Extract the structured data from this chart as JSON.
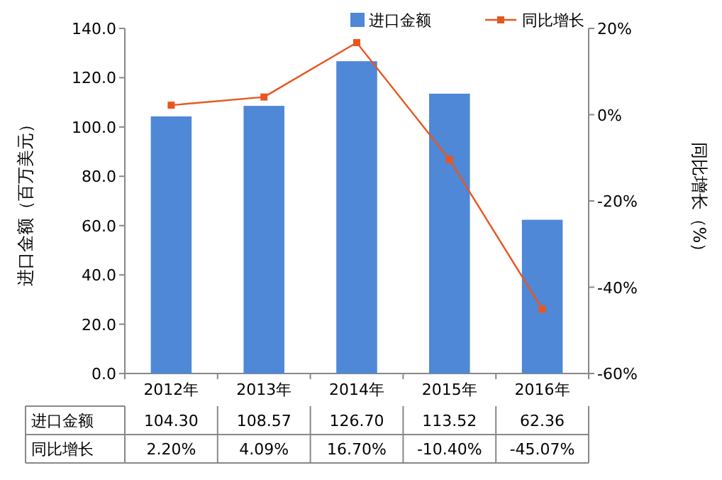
{
  "chart_data": {
    "type": "bar",
    "categories": [
      "2012年",
      "2013年",
      "2014年",
      "2015年",
      "2016年"
    ],
    "ylabel": "进口金额（百万美元）",
    "y2label": "同比增长（%）",
    "ylim": [
      0,
      140
    ],
    "yticks": [
      {
        "value": 0,
        "label": "0.0"
      },
      {
        "value": 20,
        "label": "20.0"
      },
      {
        "value": 40,
        "label": "40.0"
      },
      {
        "value": 60,
        "label": "60.0"
      },
      {
        "value": 80,
        "label": "80.0"
      },
      {
        "value": 100,
        "label": "100.0"
      },
      {
        "value": 120,
        "label": "120.0"
      },
      {
        "value": 140,
        "label": "140.0"
      }
    ],
    "y2lim": [
      -60,
      20
    ],
    "y2ticks": [
      {
        "value": -60,
        "label": "-60%"
      },
      {
        "value": -40,
        "label": "-40%"
      },
      {
        "value": -20,
        "label": "-20%"
      },
      {
        "value": 0,
        "label": "0%"
      },
      {
        "value": 20,
        "label": "20%"
      }
    ],
    "legend": "top",
    "series": [
      {
        "name": "进口金额",
        "color": "#4f88d6",
        "values": [
          104.3,
          108.57,
          126.7,
          113.52,
          62.36
        ],
        "value_labels": [
          "104.30",
          "108.57",
          "126.70",
          "113.52",
          "62.36"
        ]
      },
      {
        "name": "同比增长",
        "type": "line",
        "axis": "y2",
        "color": "#e8561f",
        "marker": "square",
        "values": [
          2.2,
          4.09,
          16.7,
          -10.4,
          -45.07
        ],
        "value_labels": [
          "2.20%",
          "4.09%",
          "16.70%",
          "-10.40%",
          "-45.07%"
        ]
      }
    ]
  }
}
